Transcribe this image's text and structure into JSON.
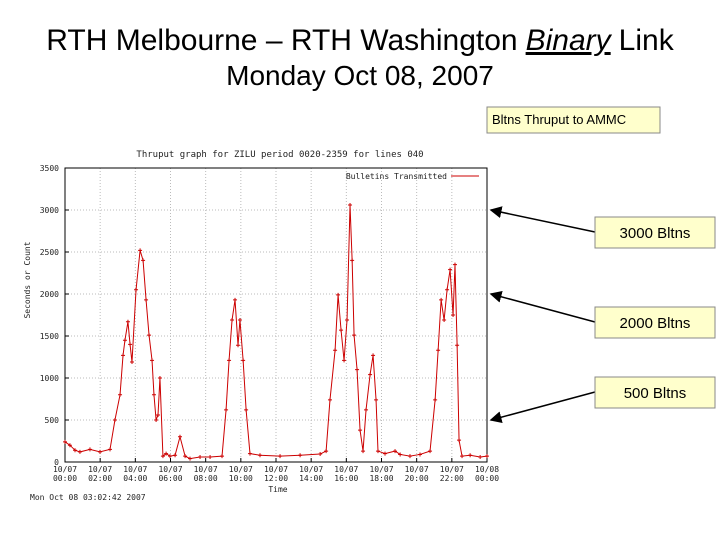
{
  "header": {
    "title": [
      "RTH Melbourne – RTH Washington",
      "Binary",
      "Link"
    ],
    "subtitle": "Monday Oct 08, 2007"
  },
  "callout_box": "Bltns Thruput to AMMC",
  "chart_data": {
    "type": "line",
    "title": "Thruput graph for ZILU period 0020-2359 for lines 040",
    "x_label": "Time",
    "y_label": "Seconds or Count",
    "footer": "Mon Oct 08 03:02:42 2007",
    "x": [
      0.0,
      0.28,
      0.57,
      0.85,
      1.42,
      1.99,
      2.56,
      2.84,
      3.13,
      3.3,
      3.41,
      3.58,
      3.7,
      3.81,
      4.04,
      4.27,
      4.44,
      4.61,
      4.78,
      4.95,
      5.06,
      5.18,
      5.29,
      5.4,
      5.57,
      5.75,
      5.97,
      6.26,
      6.54,
      6.83,
      7.11,
      7.68,
      8.25,
      8.93,
      9.16,
      9.33,
      9.5,
      9.67,
      9.84,
      9.95,
      10.13,
      10.3,
      10.52,
      11.09,
      12.23,
      13.37,
      14.51,
      14.85,
      15.07,
      15.36,
      15.53,
      15.7,
      15.87,
      16.04,
      16.21,
      16.33,
      16.44,
      16.61,
      16.78,
      16.95,
      17.12,
      17.35,
      17.52,
      17.69,
      17.8,
      18.2,
      18.77,
      19.06,
      19.62,
      20.19,
      20.76,
      21.05,
      21.22,
      21.39,
      21.56,
      21.73,
      21.9,
      22.07,
      22.18,
      22.3,
      22.41,
      22.58,
      23.04,
      23.61,
      24.0
    ],
    "series": [
      {
        "name": "Bulletins Transmitted",
        "color": "#cc0000",
        "values": [
          240,
          200,
          140,
          120,
          150,
          120,
          150,
          500,
          800,
          1270,
          1450,
          1670,
          1400,
          1190,
          2050,
          2520,
          2400,
          1930,
          1510,
          1210,
          800,
          500,
          560,
          1000,
          70,
          100,
          70,
          80,
          300,
          70,
          40,
          60,
          60,
          70,
          620,
          1210,
          1690,
          1930,
          1390,
          1690,
          1210,
          620,
          100,
          80,
          70,
          80,
          95,
          130,
          740,
          1330,
          1990,
          1570,
          1210,
          1690,
          3060,
          2400,
          1510,
          1100,
          380,
          130,
          620,
          1040,
          1270,
          740,
          130,
          100,
          130,
          90,
          70,
          90,
          130,
          740,
          1330,
          1930,
          1690,
          2050,
          2290,
          1750,
          2350,
          1390,
          260,
          70,
          80,
          60,
          70
        ]
      }
    ],
    "xlim": [
      0,
      24
    ],
    "xticks": [
      {
        "value": 0,
        "label": "10/07 00:00"
      },
      {
        "value": 2,
        "label": "10/07 02:00"
      },
      {
        "value": 4,
        "label": "10/07 04:00"
      },
      {
        "value": 6,
        "label": "10/07 06:00"
      },
      {
        "value": 8,
        "label": "10/07 08:00"
      },
      {
        "value": 10,
        "label": "10/07 10:00"
      },
      {
        "value": 12,
        "label": "10/07 12:00"
      },
      {
        "value": 14,
        "label": "10/07 14:00"
      },
      {
        "value": 16,
        "label": "10/07 16:00"
      },
      {
        "value": 18,
        "label": "10/07 18:00"
      },
      {
        "value": 20,
        "label": "10/07 20:00"
      },
      {
        "value": 22,
        "label": "10/07 22:00"
      },
      {
        "value": 24,
        "label": "10/08 00:00"
      }
    ],
    "ylim": [
      0,
      3500
    ],
    "yticks": [
      0,
      500,
      1000,
      1500,
      2000,
      2500,
      3000,
      3500
    ],
    "grid": true,
    "legend": "upper right",
    "annotations": [
      {
        "text": "3000 Bltns",
        "y": 3000
      },
      {
        "text": "2000 Bltns",
        "y": 2000
      },
      {
        "text": "500 Bltns",
        "y": 500
      }
    ]
  }
}
